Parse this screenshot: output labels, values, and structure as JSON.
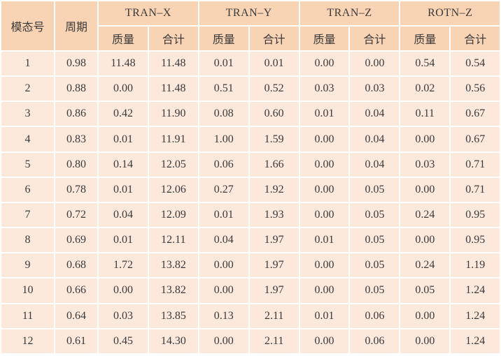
{
  "table": {
    "header": {
      "mode": "模态号",
      "period": "周期",
      "groups": [
        "TRAN–X",
        "TRAN–Y",
        "TRAN–Z",
        "ROTN–Z"
      ],
      "sub": [
        "质量",
        "合计"
      ]
    },
    "rows": [
      [
        "1",
        "0.98",
        "11.48",
        "11.48",
        "0.01",
        "0.01",
        "0.00",
        "0.00",
        "0.54",
        "0.54"
      ],
      [
        "2",
        "0.88",
        "0.00",
        "11.48",
        "0.51",
        "0.52",
        "0.03",
        "0.03",
        "0.02",
        "0.56"
      ],
      [
        "3",
        "0.86",
        "0.42",
        "11.90",
        "0.08",
        "0.60",
        "0.01",
        "0.04",
        "0.11",
        "0.67"
      ],
      [
        "4",
        "0.83",
        "0.01",
        "11.91",
        "1.00",
        "1.59",
        "0.00",
        "0.04",
        "0.00",
        "0.67"
      ],
      [
        "5",
        "0.80",
        "0.14",
        "12.05",
        "0.06",
        "1.66",
        "0.00",
        "0.04",
        "0.03",
        "0.71"
      ],
      [
        "6",
        "0.78",
        "0.01",
        "12.06",
        "0.27",
        "1.92",
        "0.00",
        "0.05",
        "0.00",
        "0.71"
      ],
      [
        "7",
        "0.72",
        "0.04",
        "12.09",
        "0.01",
        "1.93",
        "0.00",
        "0.05",
        "0.24",
        "0.95"
      ],
      [
        "8",
        "0.69",
        "0.01",
        "12.11",
        "0.04",
        "1.97",
        "0.01",
        "0.05",
        "0.00",
        "0.95"
      ],
      [
        "9",
        "0.68",
        "1.72",
        "13.82",
        "0.00",
        "1.97",
        "0.00",
        "0.05",
        "0.24",
        "1.19"
      ],
      [
        "10",
        "0.66",
        "0.00",
        "13.82",
        "0.00",
        "1.97",
        "0.00",
        "0.05",
        "0.05",
        "1.24"
      ],
      [
        "11",
        "0.64",
        "0.03",
        "13.85",
        "0.13",
        "2.11",
        "0.01",
        "0.06",
        "0.00",
        "1.24"
      ],
      [
        "12",
        "0.61",
        "0.45",
        "14.30",
        "0.00",
        "2.11",
        "0.00",
        "0.06",
        "0.00",
        "1.24"
      ]
    ]
  }
}
